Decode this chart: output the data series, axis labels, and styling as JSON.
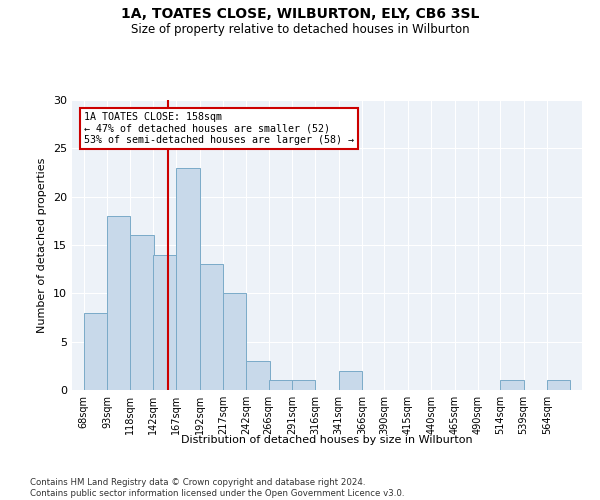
{
  "title": "1A, TOATES CLOSE, WILBURTON, ELY, CB6 3SL",
  "subtitle": "Size of property relative to detached houses in Wilburton",
  "xlabel": "Distribution of detached houses by size in Wilburton",
  "ylabel": "Number of detached properties",
  "bins": [
    68,
    93,
    118,
    142,
    167,
    192,
    217,
    242,
    266,
    291,
    316,
    341,
    366,
    390,
    415,
    440,
    465,
    490,
    514,
    539,
    564
  ],
  "counts": [
    8,
    18,
    16,
    14,
    23,
    13,
    10,
    3,
    1,
    1,
    0,
    2,
    0,
    0,
    0,
    0,
    0,
    0,
    1,
    0,
    1
  ],
  "bar_color": "#c8d9ea",
  "bar_edge_color": "#7aaac8",
  "vline_x": 158,
  "vline_color": "#cc0000",
  "annotation_text": "1A TOATES CLOSE: 158sqm\n← 47% of detached houses are smaller (52)\n53% of semi-detached houses are larger (58) →",
  "annotation_box_color": "#cc0000",
  "ylim": [
    0,
    30
  ],
  "yticks": [
    0,
    5,
    10,
    15,
    20,
    25,
    30
  ],
  "bg_color": "#edf2f8",
  "footnote": "Contains HM Land Registry data © Crown copyright and database right 2024.\nContains public sector information licensed under the Open Government Licence v3.0."
}
